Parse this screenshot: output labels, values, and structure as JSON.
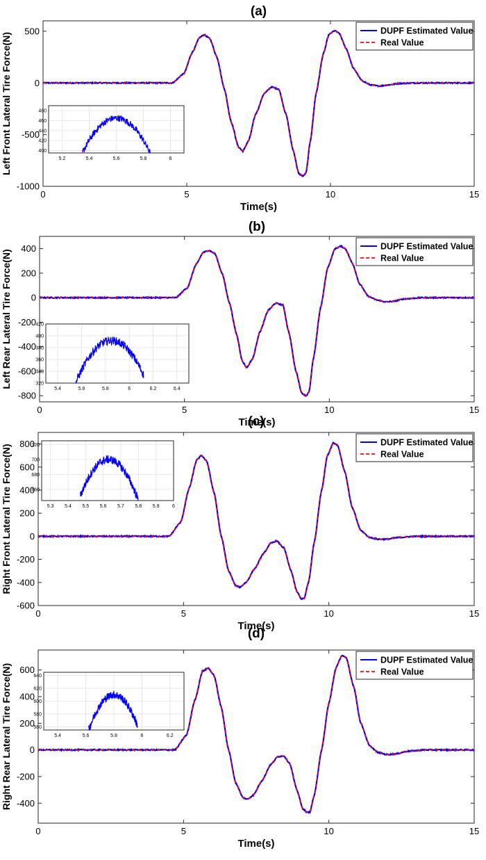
{
  "chart_data": [
    {
      "type": "line",
      "title": "(a)",
      "xlabel": "Time(s)",
      "ylabel": "Left Front Lateral Tire Force(N)",
      "xlim": [
        0,
        15
      ],
      "ylim": [
        -1000,
        600
      ],
      "xticks": [
        0,
        5,
        10,
        15
      ],
      "yticks": [
        -1000,
        -500,
        0,
        500
      ],
      "grid": false,
      "legend_position": "top-right",
      "series": [
        {
          "name": "DUPF Estimated Value",
          "color": "#0000ff",
          "style": "solid"
        },
        {
          "name": "Real Value",
          "color": "#ff0000",
          "style": "dashed"
        }
      ],
      "x": [
        0,
        4.5,
        4.9,
        5.2,
        5.45,
        5.6,
        5.8,
        6.05,
        6.3,
        6.55,
        6.8,
        6.95,
        7.15,
        7.4,
        7.7,
        7.95,
        8.2,
        8.45,
        8.7,
        8.9,
        9.05,
        9.15,
        9.3,
        9.5,
        9.75,
        9.95,
        10.15,
        10.3,
        10.55,
        10.8,
        11.1,
        11.4,
        11.7,
        12.0,
        12.4,
        13.0,
        14.0,
        15.0
      ],
      "values": [
        0,
        0,
        90,
        300,
        440,
        465,
        430,
        250,
        -50,
        -380,
        -620,
        -660,
        -560,
        -300,
        -100,
        -40,
        -60,
        -300,
        -650,
        -880,
        -900,
        -870,
        -560,
        -100,
        280,
        470,
        505,
        480,
        330,
        140,
        20,
        -20,
        -30,
        -20,
        -5,
        0,
        0,
        0
      ],
      "inset": {
        "xlim": [
          5.1,
          6.1
        ],
        "ylim": [
          395,
          490
        ],
        "xticks": [
          5.2,
          5.4,
          5.6,
          5.8,
          6
        ],
        "yticks": [
          400,
          420,
          440,
          460,
          480
        ],
        "peak_x": 5.6,
        "peak_y": 465,
        "x_from": 5.35,
        "x_to": 5.85
      }
    },
    {
      "type": "line",
      "title": "(b)",
      "xlabel": "Time(s)",
      "ylabel": "Left Rear Lateral Tire Force(N)",
      "xlim": [
        0,
        15
      ],
      "ylim": [
        -850,
        500
      ],
      "xticks": [
        0,
        5,
        10,
        15
      ],
      "yticks": [
        -800,
        -600,
        -400,
        -200,
        0,
        200,
        400
      ],
      "grid": false,
      "legend_position": "top-right",
      "series": [
        {
          "name": "DUPF Estimated Value",
          "color": "#0000ff",
          "style": "solid"
        },
        {
          "name": "Real Value",
          "color": "#ff0000",
          "style": "dashed"
        }
      ],
      "x": [
        0,
        4.7,
        5.1,
        5.4,
        5.65,
        5.85,
        6.05,
        6.3,
        6.55,
        6.8,
        7.0,
        7.15,
        7.35,
        7.6,
        7.9,
        8.15,
        8.4,
        8.6,
        8.85,
        9.05,
        9.2,
        9.3,
        9.45,
        9.7,
        9.95,
        10.2,
        10.4,
        10.55,
        10.8,
        11.05,
        11.35,
        11.65,
        11.95,
        12.2,
        12.6,
        13.2,
        14.0,
        15.0
      ],
      "values": [
        0,
        0,
        80,
        270,
        370,
        385,
        360,
        200,
        -40,
        -300,
        -520,
        -570,
        -500,
        -280,
        -100,
        -45,
        -60,
        -280,
        -600,
        -780,
        -800,
        -770,
        -500,
        -80,
        250,
        400,
        420,
        400,
        280,
        110,
        10,
        -20,
        -35,
        -30,
        -10,
        0,
        0,
        0
      ],
      "inset": {
        "xlim": [
          5.3,
          6.5
        ],
        "ylim": [
          320,
          420
        ],
        "xticks": [
          5.4,
          5.6,
          5.8,
          6,
          6.2,
          6.4
        ],
        "yticks": [
          320,
          340,
          360,
          380,
          400,
          420
        ],
        "peak_x": 5.85,
        "peak_y": 392,
        "x_from": 5.55,
        "x_to": 6.12
      }
    },
    {
      "type": "line",
      "title": "(c)",
      "xlabel": "Time(s)",
      "ylabel": "Right Front Lateral Tire Force(N)",
      "xlim": [
        0,
        15
      ],
      "ylim": [
        -600,
        900
      ],
      "xticks": [
        0,
        5,
        10,
        15
      ],
      "yticks": [
        -600,
        -400,
        -200,
        0,
        200,
        400,
        600,
        800
      ],
      "grid": false,
      "legend_position": "top-right",
      "series": [
        {
          "name": "DUPF Estimated Value",
          "color": "#0000ff",
          "style": "solid"
        },
        {
          "name": "Real Value",
          "color": "#ff0000",
          "style": "dashed"
        }
      ],
      "x": [
        0,
        4.5,
        4.9,
        5.2,
        5.45,
        5.62,
        5.8,
        6.05,
        6.3,
        6.55,
        6.8,
        6.95,
        7.15,
        7.45,
        7.75,
        8.0,
        8.2,
        8.45,
        8.7,
        8.9,
        9.05,
        9.15,
        9.3,
        9.5,
        9.75,
        9.95,
        10.15,
        10.3,
        10.55,
        10.8,
        11.1,
        11.4,
        11.7,
        12.0,
        12.4,
        13.0,
        14.0,
        15.0
      ],
      "values": [
        0,
        0,
        120,
        420,
        660,
        700,
        650,
        380,
        0,
        -300,
        -430,
        -440,
        -400,
        -280,
        -150,
        -60,
        -40,
        -100,
        -300,
        -480,
        -540,
        -540,
        -400,
        -50,
        400,
        700,
        810,
        790,
        560,
        250,
        50,
        -10,
        -25,
        -25,
        -10,
        0,
        0,
        0
      ],
      "inset": {
        "xlim": [
          5.25,
          6.0
        ],
        "ylim": [
          645,
          725
        ],
        "xticks": [
          5.3,
          5.4,
          5.5,
          5.6,
          5.7,
          5.8,
          5.9,
          6
        ],
        "yticks": [
          660,
          680,
          700,
          720
        ],
        "peak_x": 5.63,
        "peak_y": 700,
        "x_from": 5.47,
        "x_to": 5.8
      }
    },
    {
      "type": "line",
      "title": "(d)",
      "xlabel": "Time(s)",
      "ylabel": "Right Rear Lateral Tire Force(N)",
      "xlim": [
        0,
        15
      ],
      "ylim": [
        -550,
        750
      ],
      "xticks": [
        0,
        5,
        10,
        15
      ],
      "yticks": [
        -400,
        -200,
        0,
        200,
        400,
        600
      ],
      "grid": false,
      "legend_position": "top-right",
      "series": [
        {
          "name": "DUPF Estimated Value",
          "color": "#0000ff",
          "style": "solid"
        },
        {
          "name": "Real Value",
          "color": "#ff0000",
          "style": "dashed"
        }
      ],
      "x": [
        0,
        4.7,
        5.1,
        5.4,
        5.65,
        5.85,
        6.05,
        6.3,
        6.55,
        6.8,
        7.05,
        7.2,
        7.4,
        7.7,
        8.0,
        8.25,
        8.45,
        8.65,
        8.9,
        9.1,
        9.25,
        9.35,
        9.5,
        9.75,
        10.0,
        10.25,
        10.45,
        10.6,
        10.85,
        11.1,
        11.4,
        11.7,
        12.0,
        12.3,
        12.7,
        13.3,
        14.0,
        15.0
      ],
      "values": [
        0,
        0,
        110,
        380,
        590,
        615,
        560,
        320,
        0,
        -250,
        -360,
        -370,
        -340,
        -230,
        -110,
        -50,
        -45,
        -100,
        -300,
        -440,
        -470,
        -465,
        -340,
        0,
        350,
        620,
        710,
        690,
        480,
        200,
        30,
        -20,
        -35,
        -30,
        -10,
        0,
        0,
        0
      ],
      "inset": {
        "xlim": [
          5.3,
          6.3
        ],
        "ylim": [
          555,
          645
        ],
        "xticks": [
          5.4,
          5.6,
          5.8,
          6,
          6.2
        ],
        "yticks": [
          560,
          580,
          600,
          620,
          640
        ],
        "peak_x": 5.8,
        "peak_y": 610,
        "x_from": 5.62,
        "x_to": 5.97
      }
    }
  ]
}
